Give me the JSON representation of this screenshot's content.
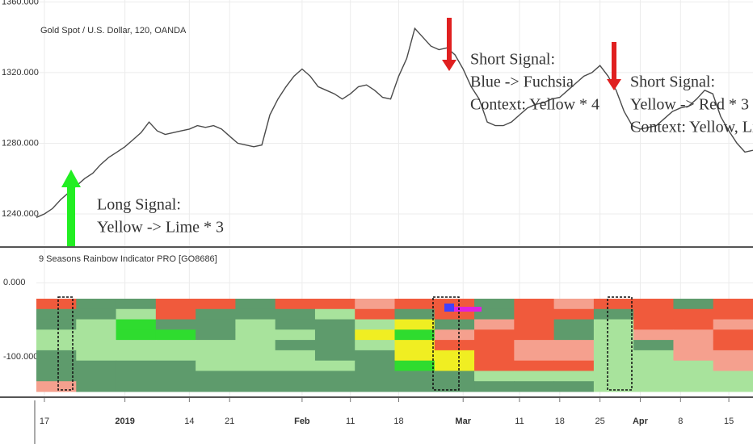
{
  "chart_data": [
    {
      "type": "line",
      "title": "Gold Spot / U.S. Dollar, 120, OANDA",
      "color": "#4a4a4a",
      "values": [
        1238,
        1240,
        1243,
        1248,
        1252,
        1256,
        1260,
        1263,
        1268,
        1272,
        1275,
        1278,
        1282,
        1286,
        1292,
        1287,
        1285,
        1286,
        1287,
        1288,
        1290,
        1289,
        1290,
        1288,
        1284,
        1280,
        1279,
        1278,
        1279,
        1296,
        1305,
        1312,
        1318,
        1322,
        1318,
        1312,
        1310,
        1308,
        1305,
        1308,
        1312,
        1313,
        1310,
        1306,
        1305,
        1318,
        1328,
        1345,
        1340,
        1335,
        1333,
        1334,
        1330,
        1322,
        1312,
        1305,
        1292,
        1290,
        1290,
        1292,
        1296,
        1300,
        1302,
        1303,
        1305,
        1306,
        1310,
        1314,
        1318,
        1320,
        1324,
        1318,
        1310,
        1298,
        1290,
        1288,
        1289,
        1290,
        1294,
        1298,
        1300,
        1301,
        1305,
        1310,
        1308,
        1295,
        1287,
        1280,
        1275,
        1276
      ],
      "xlim": [
        0,
        89
      ],
      "xticks": [
        {
          "value": 1,
          "label": "17"
        },
        {
          "value": 11,
          "label": "2019"
        },
        {
          "value": 19,
          "label": "14"
        },
        {
          "value": 24,
          "label": "21"
        },
        {
          "value": 33,
          "label": "Feb"
        },
        {
          "value": 39,
          "label": "11"
        },
        {
          "value": 45,
          "label": "18"
        },
        {
          "value": 53,
          "label": "Mar"
        },
        {
          "value": 60,
          "label": "11"
        },
        {
          "value": 65,
          "label": "18"
        },
        {
          "value": 70,
          "label": "25"
        },
        {
          "value": 75,
          "label": "Apr"
        },
        {
          "value": 80,
          "label": "8"
        },
        {
          "value": 86,
          "label": "15"
        }
      ],
      "ylim": [
        1221.7,
        1361.1
      ],
      "yticks": [
        {
          "value": 1240,
          "label": "1240.000"
        },
        {
          "value": 1280,
          "label": "1280.000"
        },
        {
          "value": 1320,
          "label": "1320.000"
        },
        {
          "value": 1360,
          "label": "1360.000"
        }
      ],
      "grid": true,
      "annotations": {
        "long": [
          "Long Signal:",
          "Yellow -> Lime * 3"
        ],
        "short1": [
          "Short Signal:",
          "Blue -> Fuchsia",
          "Context: Yellow * 4"
        ],
        "short2": [
          "Short Signal:",
          "Yellow -> Red * 3",
          "Context: Yellow, Light G"
        ]
      }
    },
    {
      "type": "heatmap",
      "title": "9 Seasons Rainbow Indicator PRO [GO8686]",
      "ylim": [
        -154,
        46
      ],
      "yticks": [
        {
          "value": 0,
          "label": "0.000"
        },
        {
          "value": -100,
          "label": "-100.000"
        }
      ],
      "palette": {
        "G": "#5e9b6c",
        "L": "#a8e39c",
        "M": "#2fdc2f",
        "Y": "#f0ee22",
        "R": "#f05a3c",
        "S": "#f5a08e"
      },
      "rows": [
        "RGGRRGRRSRRGRSRRGR",
        "GGLRGGGLRGRGRRGRRR",
        "GLMGGLGGLYGSRGLRRS",
        "LLMMGLLGYMSRRGLSSR",
        "LLLLLLGGLYRRSSLGSR",
        "GLLLLLLGGYYRSSLLSS",
        "GGGGLLLLGMYRRRLLLS",
        "GGGGGGGGGGGLLLLLLL",
        "SGGGGGGGGGGGGGLLLL"
      ]
    }
  ]
}
